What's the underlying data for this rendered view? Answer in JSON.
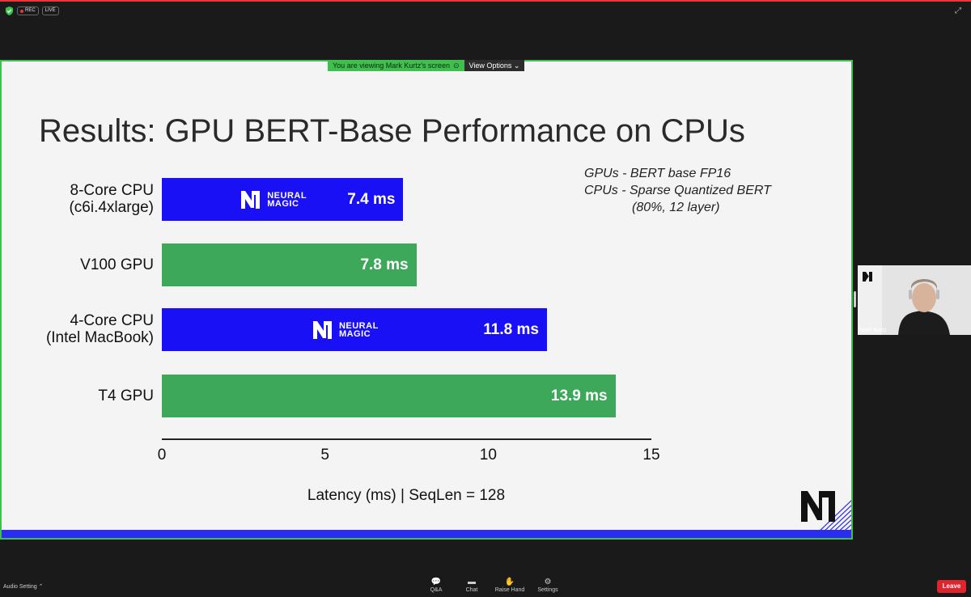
{
  "window": {
    "rec_label": "REC",
    "live_label": "LIVE",
    "expand_icon": "expand-icon"
  },
  "share": {
    "banner_text": "You are viewing Mark Kurtz's screen",
    "view_options": "View Options"
  },
  "slide": {
    "title": "Results: GPU BERT-Base Performance on CPUs",
    "notes": [
      "GPUs - BERT base FP16",
      "CPUs - Sparse Quantized BERT",
      "(80%, 12 layer)"
    ],
    "logo_line1": "NEURAL",
    "logo_line2": "MAGIC",
    "colors": {
      "cpu_bar": "#1a10f5",
      "gpu_bar": "#3da85a",
      "strip": "#2a2cf2"
    }
  },
  "chart_data": {
    "type": "bar",
    "orientation": "horizontal",
    "categories": [
      [
        "8-Core CPU",
        "(c6i.4xlarge)"
      ],
      [
        "V100 GPU"
      ],
      [
        "4-Core CPU",
        "(Intel MacBook)"
      ],
      [
        "T4 GPU"
      ]
    ],
    "values": [
      7.4,
      7.8,
      11.8,
      13.9
    ],
    "value_labels": [
      "7.4 ms",
      "7.8 ms",
      "11.8 ms",
      "13.9 ms"
    ],
    "bar_kinds": [
      "cpu",
      "gpu",
      "cpu",
      "gpu"
    ],
    "xlabel": "Latency (ms) | SeqLen = 128",
    "xlim": [
      0,
      15
    ],
    "xticks": [
      "0",
      "5",
      "10",
      "15"
    ],
    "grid": false
  },
  "participant": {
    "name": "Mark Kurtz"
  },
  "toolbar": {
    "audio_setting": "Audio Setting",
    "qa": "Q&A",
    "chat": "Chat",
    "raise_hand": "Raise Hand",
    "settings": "Settings",
    "leave": "Leave"
  }
}
